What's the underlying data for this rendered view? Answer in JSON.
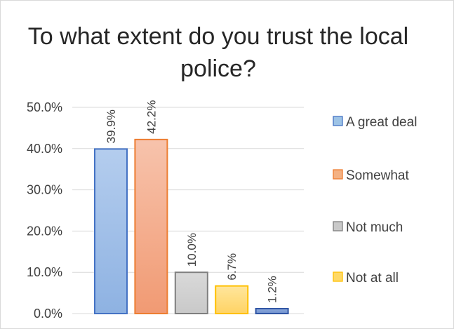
{
  "chart_data": {
    "type": "bar",
    "title": "To what extent do you trust the local police?",
    "categories": [
      "A great deal",
      "Somewhat",
      "Not much",
      "Not at all",
      ""
    ],
    "values": [
      39.9,
      42.2,
      10.0,
      6.7,
      1.2
    ],
    "data_labels": [
      "39.9%",
      "42.2%",
      "10.0%",
      "6.7%",
      "1.2%"
    ],
    "ylim": [
      0,
      50
    ],
    "yticks": [
      "0.0%",
      "10.0%",
      "20.0%",
      "30.0%",
      "40.0%",
      "50.0%"
    ],
    "grid": true,
    "legend_position": "right",
    "legend": [
      {
        "name": "A great deal",
        "color": "#9dc3e6"
      },
      {
        "name": "Somewhat",
        "color": "#f4b183"
      },
      {
        "name": "Not much",
        "color": "#c9c9c9"
      },
      {
        "name": "Not at all",
        "color": "#ffd966"
      }
    ],
    "bar_colors": [
      {
        "fill_top": "#b4cdee",
        "fill_bottom": "#8eb2e2",
        "stroke": "#4472c4"
      },
      {
        "fill_top": "#f7c3ac",
        "fill_bottom": "#f19a73",
        "stroke": "#ed7d31"
      },
      {
        "fill_top": "#d9d9d9",
        "fill_bottom": "#c9c9c9",
        "stroke": "#7f7f7f"
      },
      {
        "fill_top": "#ffe69c",
        "fill_bottom": "#ffd364",
        "stroke": "#ffc000"
      },
      {
        "fill_top": "#8eaadb",
        "fill_bottom": "#6f90cf",
        "stroke": "#2f55a4"
      }
    ]
  }
}
